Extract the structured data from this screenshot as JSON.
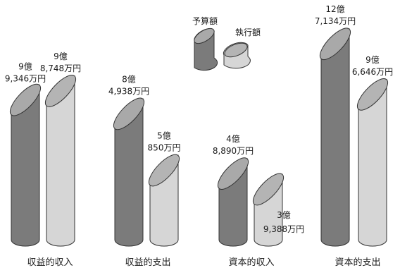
{
  "chart_data": {
    "type": "bar",
    "unit": "万円",
    "categories": [
      "収益的収入",
      "収益的支出",
      "資本的収入",
      "資本的支出"
    ],
    "series": [
      {
        "name": "予算額",
        "color": "#7b7b7b",
        "values": [
          93346,
          84938,
          48890,
          127134
        ],
        "labels": [
          [
            "9億",
            "9,346万円"
          ],
          [
            "8億",
            "4,938万円"
          ],
          [
            "4億",
            "8,890万円"
          ],
          [
            "12億",
            "7,134万円"
          ]
        ]
      },
      {
        "name": "執行額",
        "color": "#d6d6d6",
        "values": [
          98748,
          50850,
          39388,
          96646
        ],
        "labels": [
          [
            "9億",
            "8,748万円"
          ],
          [
            "5億",
            "850万円"
          ],
          [
            "3億",
            "9,388万円"
          ],
          [
            "9億",
            "6,646万円"
          ]
        ]
      }
    ],
    "legend": [
      "予算額",
      "執行額"
    ],
    "legend_position": "top-center",
    "grid": false
  }
}
